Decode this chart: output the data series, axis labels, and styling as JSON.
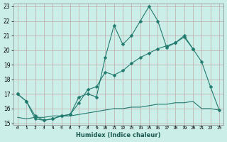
{
  "xlabel": "Humidex (Indice chaleur)",
  "x_values": [
    0,
    1,
    2,
    3,
    4,
    5,
    6,
    7,
    8,
    9,
    10,
    11,
    12,
    13,
    14,
    15,
    16,
    17,
    18,
    19,
    20,
    21,
    22,
    23
  ],
  "line1_y": [
    17.0,
    16.5,
    15.5,
    15.2,
    15.3,
    15.5,
    15.6,
    16.8,
    17.0,
    16.8,
    19.5,
    21.7,
    20.4,
    21.0,
    22.0,
    23.0,
    22.0,
    20.2,
    20.5,
    21.0,
    20.1,
    19.2,
    17.5,
    15.9
  ],
  "line2_x": [
    0,
    1,
    2,
    3,
    4,
    5,
    6,
    7,
    8,
    9,
    10,
    11,
    12,
    13,
    14,
    15,
    16,
    17,
    18,
    19,
    20
  ],
  "line2_y": [
    17.0,
    16.5,
    15.3,
    15.2,
    15.3,
    15.5,
    15.6,
    16.4,
    17.3,
    17.5,
    18.5,
    18.3,
    18.6,
    19.1,
    19.5,
    19.8,
    20.1,
    20.3,
    20.5,
    20.9,
    20.1
  ],
  "line3_x": [
    0,
    1,
    2,
    3,
    4,
    5,
    6,
    7,
    8,
    9,
    10,
    11,
    12,
    13,
    14,
    15,
    16,
    17,
    18,
    19,
    20,
    21,
    22,
    23
  ],
  "line3_y": [
    15.4,
    15.3,
    15.4,
    15.4,
    15.5,
    15.5,
    15.5,
    15.6,
    15.7,
    15.8,
    15.9,
    16.0,
    16.0,
    16.1,
    16.1,
    16.2,
    16.3,
    16.3,
    16.4,
    16.4,
    16.5,
    16.0,
    16.0,
    15.9
  ],
  "ylim": [
    15,
    23
  ],
  "xlim": [
    -0.5,
    23.5
  ],
  "yticks": [
    15,
    16,
    17,
    18,
    19,
    20,
    21,
    22,
    23
  ],
  "xticks": [
    0,
    1,
    2,
    3,
    4,
    5,
    6,
    7,
    8,
    9,
    10,
    11,
    12,
    13,
    14,
    15,
    16,
    17,
    18,
    19,
    20,
    21,
    22,
    23
  ],
  "line_color": "#217a6e",
  "bg_color": "#cceee8",
  "grid_color": "#c0aaaa",
  "markersize": 2.5
}
